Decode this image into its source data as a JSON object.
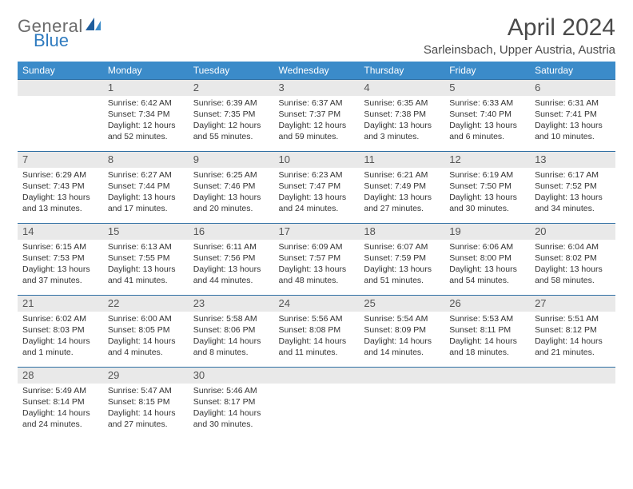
{
  "logo": {
    "word1": "General",
    "word2": "Blue",
    "grey": "#6b6b6b",
    "blue": "#2f7bbf",
    "shape_fill": "#1f5d9c"
  },
  "header": {
    "month_title": "April 2024",
    "location": "Sarleinsbach, Upper Austria, Austria"
  },
  "colors": {
    "header_band": "#3b8bc9",
    "header_text": "#ffffff",
    "daynum_bg": "#e9e9e9",
    "rule": "#2f6fa3",
    "body_text": "#333333"
  },
  "day_labels": [
    "Sunday",
    "Monday",
    "Tuesday",
    "Wednesday",
    "Thursday",
    "Friday",
    "Saturday"
  ],
  "weeks": [
    {
      "numbers": [
        "",
        "1",
        "2",
        "3",
        "4",
        "5",
        "6"
      ],
      "cells": [
        {
          "lines": []
        },
        {
          "lines": [
            "Sunrise: 6:42 AM",
            "Sunset: 7:34 PM",
            "Daylight: 12 hours",
            "and 52 minutes."
          ]
        },
        {
          "lines": [
            "Sunrise: 6:39 AM",
            "Sunset: 7:35 PM",
            "Daylight: 12 hours",
            "and 55 minutes."
          ]
        },
        {
          "lines": [
            "Sunrise: 6:37 AM",
            "Sunset: 7:37 PM",
            "Daylight: 12 hours",
            "and 59 minutes."
          ]
        },
        {
          "lines": [
            "Sunrise: 6:35 AM",
            "Sunset: 7:38 PM",
            "Daylight: 13 hours",
            "and 3 minutes."
          ]
        },
        {
          "lines": [
            "Sunrise: 6:33 AM",
            "Sunset: 7:40 PM",
            "Daylight: 13 hours",
            "and 6 minutes."
          ]
        },
        {
          "lines": [
            "Sunrise: 6:31 AM",
            "Sunset: 7:41 PM",
            "Daylight: 13 hours",
            "and 10 minutes."
          ]
        }
      ]
    },
    {
      "numbers": [
        "7",
        "8",
        "9",
        "10",
        "11",
        "12",
        "13"
      ],
      "cells": [
        {
          "lines": [
            "Sunrise: 6:29 AM",
            "Sunset: 7:43 PM",
            "Daylight: 13 hours",
            "and 13 minutes."
          ]
        },
        {
          "lines": [
            "Sunrise: 6:27 AM",
            "Sunset: 7:44 PM",
            "Daylight: 13 hours",
            "and 17 minutes."
          ]
        },
        {
          "lines": [
            "Sunrise: 6:25 AM",
            "Sunset: 7:46 PM",
            "Daylight: 13 hours",
            "and 20 minutes."
          ]
        },
        {
          "lines": [
            "Sunrise: 6:23 AM",
            "Sunset: 7:47 PM",
            "Daylight: 13 hours",
            "and 24 minutes."
          ]
        },
        {
          "lines": [
            "Sunrise: 6:21 AM",
            "Sunset: 7:49 PM",
            "Daylight: 13 hours",
            "and 27 minutes."
          ]
        },
        {
          "lines": [
            "Sunrise: 6:19 AM",
            "Sunset: 7:50 PM",
            "Daylight: 13 hours",
            "and 30 minutes."
          ]
        },
        {
          "lines": [
            "Sunrise: 6:17 AM",
            "Sunset: 7:52 PM",
            "Daylight: 13 hours",
            "and 34 minutes."
          ]
        }
      ]
    },
    {
      "numbers": [
        "14",
        "15",
        "16",
        "17",
        "18",
        "19",
        "20"
      ],
      "cells": [
        {
          "lines": [
            "Sunrise: 6:15 AM",
            "Sunset: 7:53 PM",
            "Daylight: 13 hours",
            "and 37 minutes."
          ]
        },
        {
          "lines": [
            "Sunrise: 6:13 AM",
            "Sunset: 7:55 PM",
            "Daylight: 13 hours",
            "and 41 minutes."
          ]
        },
        {
          "lines": [
            "Sunrise: 6:11 AM",
            "Sunset: 7:56 PM",
            "Daylight: 13 hours",
            "and 44 minutes."
          ]
        },
        {
          "lines": [
            "Sunrise: 6:09 AM",
            "Sunset: 7:57 PM",
            "Daylight: 13 hours",
            "and 48 minutes."
          ]
        },
        {
          "lines": [
            "Sunrise: 6:07 AM",
            "Sunset: 7:59 PM",
            "Daylight: 13 hours",
            "and 51 minutes."
          ]
        },
        {
          "lines": [
            "Sunrise: 6:06 AM",
            "Sunset: 8:00 PM",
            "Daylight: 13 hours",
            "and 54 minutes."
          ]
        },
        {
          "lines": [
            "Sunrise: 6:04 AM",
            "Sunset: 8:02 PM",
            "Daylight: 13 hours",
            "and 58 minutes."
          ]
        }
      ]
    },
    {
      "numbers": [
        "21",
        "22",
        "23",
        "24",
        "25",
        "26",
        "27"
      ],
      "cells": [
        {
          "lines": [
            "Sunrise: 6:02 AM",
            "Sunset: 8:03 PM",
            "Daylight: 14 hours",
            "and 1 minute."
          ]
        },
        {
          "lines": [
            "Sunrise: 6:00 AM",
            "Sunset: 8:05 PM",
            "Daylight: 14 hours",
            "and 4 minutes."
          ]
        },
        {
          "lines": [
            "Sunrise: 5:58 AM",
            "Sunset: 8:06 PM",
            "Daylight: 14 hours",
            "and 8 minutes."
          ]
        },
        {
          "lines": [
            "Sunrise: 5:56 AM",
            "Sunset: 8:08 PM",
            "Daylight: 14 hours",
            "and 11 minutes."
          ]
        },
        {
          "lines": [
            "Sunrise: 5:54 AM",
            "Sunset: 8:09 PM",
            "Daylight: 14 hours",
            "and 14 minutes."
          ]
        },
        {
          "lines": [
            "Sunrise: 5:53 AM",
            "Sunset: 8:11 PM",
            "Daylight: 14 hours",
            "and 18 minutes."
          ]
        },
        {
          "lines": [
            "Sunrise: 5:51 AM",
            "Sunset: 8:12 PM",
            "Daylight: 14 hours",
            "and 21 minutes."
          ]
        }
      ]
    },
    {
      "numbers": [
        "28",
        "29",
        "30",
        "",
        "",
        "",
        ""
      ],
      "cells": [
        {
          "lines": [
            "Sunrise: 5:49 AM",
            "Sunset: 8:14 PM",
            "Daylight: 14 hours",
            "and 24 minutes."
          ]
        },
        {
          "lines": [
            "Sunrise: 5:47 AM",
            "Sunset: 8:15 PM",
            "Daylight: 14 hours",
            "and 27 minutes."
          ]
        },
        {
          "lines": [
            "Sunrise: 5:46 AM",
            "Sunset: 8:17 PM",
            "Daylight: 14 hours",
            "and 30 minutes."
          ]
        },
        {
          "lines": []
        },
        {
          "lines": []
        },
        {
          "lines": []
        },
        {
          "lines": []
        }
      ]
    }
  ]
}
